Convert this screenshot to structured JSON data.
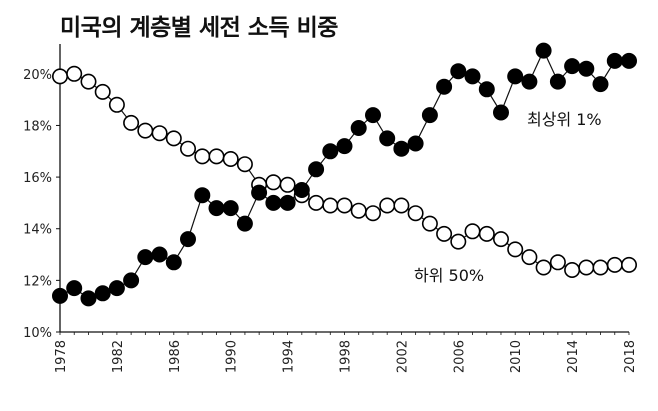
{
  "chart_data": {
    "type": "line",
    "title": "미국의 계층별 세전 소득 비중",
    "xlabel": "",
    "ylabel": "",
    "xlim": [
      1978,
      2018
    ],
    "ylim": [
      10,
      21
    ],
    "x_ticks": [
      1978,
      1982,
      1986,
      1990,
      1994,
      1998,
      2002,
      2006,
      2010,
      2014,
      2018
    ],
    "y_ticks": [
      "10%",
      "12%",
      "14%",
      "16%",
      "18%",
      "20%"
    ],
    "y_tick_values": [
      10,
      12,
      14,
      16,
      18,
      20
    ],
    "x": [
      1978,
      1979,
      1980,
      1981,
      1982,
      1983,
      1984,
      1985,
      1986,
      1987,
      1988,
      1989,
      1990,
      1991,
      1992,
      1993,
      1994,
      1995,
      1996,
      1997,
      1998,
      1999,
      2000,
      2001,
      2002,
      2003,
      2004,
      2005,
      2006,
      2007,
      2008,
      2009,
      2010,
      2011,
      2012,
      2013,
      2014,
      2015,
      2016,
      2017,
      2018
    ],
    "series": [
      {
        "name": "최상위 1%",
        "marker": "filled-circle",
        "color": "#000000",
        "values": [
          11.4,
          11.7,
          11.3,
          11.5,
          11.7,
          12.0,
          12.9,
          13.0,
          12.7,
          13.6,
          15.3,
          14.8,
          14.8,
          14.2,
          15.4,
          15.0,
          15.0,
          15.5,
          16.3,
          17.0,
          17.2,
          17.9,
          18.4,
          17.5,
          17.1,
          17.3,
          18.4,
          19.5,
          20.1,
          19.9,
          19.4,
          18.5,
          19.9,
          19.7,
          20.9,
          19.7,
          20.3,
          20.2,
          19.6,
          20.5,
          20.5
        ]
      },
      {
        "name": "하위 50%",
        "marker": "open-circle",
        "color": "#000000",
        "values": [
          19.9,
          20.0,
          19.7,
          19.3,
          18.8,
          18.1,
          17.8,
          17.7,
          17.5,
          17.1,
          16.8,
          16.8,
          16.7,
          16.5,
          15.7,
          15.8,
          15.7,
          15.3,
          15.0,
          14.9,
          14.9,
          14.7,
          14.6,
          14.9,
          14.9,
          14.6,
          14.2,
          13.8,
          13.5,
          13.9,
          13.8,
          13.6,
          13.2,
          12.9,
          12.5,
          12.7,
          12.4,
          12.5,
          12.5,
          12.6,
          12.6
        ]
      }
    ],
    "grid": false,
    "legend": "inline labels"
  }
}
